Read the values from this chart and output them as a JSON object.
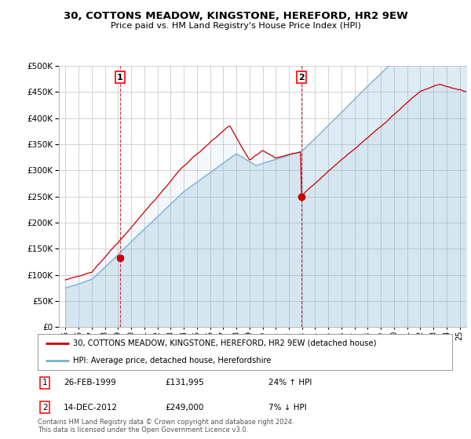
{
  "title": "30, COTTONS MEADOW, KINGSTONE, HEREFORD, HR2 9EW",
  "subtitle": "Price paid vs. HM Land Registry's House Price Index (HPI)",
  "legend_line1": "30, COTTONS MEADOW, KINGSTONE, HEREFORD, HR2 9EW (detached house)",
  "legend_line2": "HPI: Average price, detached house, Herefordshire",
  "sale1_date": "26-FEB-1999",
  "sale1_price": "£131,995",
  "sale1_hpi": "24% ↑ HPI",
  "sale1_year": 1999.15,
  "sale1_value": 131995,
  "sale2_date": "14-DEC-2012",
  "sale2_price": "£249,000",
  "sale2_hpi": "7% ↓ HPI",
  "sale2_year": 2012.96,
  "sale2_value": 249000,
  "footer": "Contains HM Land Registry data © Crown copyright and database right 2024.\nThis data is licensed under the Open Government Licence v3.0.",
  "line_color_red": "#cc0000",
  "line_color_blue": "#7ab0d4",
  "fill_color_blue": "#ddeeff",
  "marker_color_red": "#cc0000",
  "background_color": "#ffffff",
  "grid_color": "#cccccc",
  "ylim": [
    0,
    500000
  ],
  "yticks": [
    0,
    50000,
    100000,
    150000,
    200000,
    250000,
    300000,
    350000,
    400000,
    450000,
    500000
  ],
  "xlim_start": 1994.5,
  "xlim_end": 2025.5
}
